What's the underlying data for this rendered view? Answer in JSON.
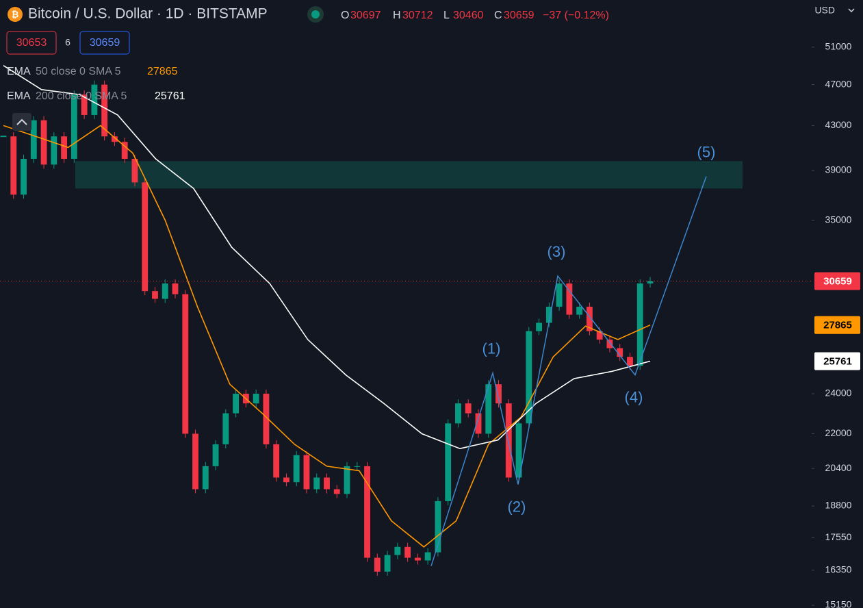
{
  "header": {
    "title": "Bitcoin / U.S. Dollar · 1D · BITSTAMP",
    "ohlc": [
      {
        "label": "O",
        "value": 30697
      },
      {
        "label": "H",
        "value": 30712
      },
      {
        "label": "L",
        "value": 30460
      },
      {
        "label": "C",
        "value": 30659
      }
    ],
    "change": "−37 (−0.12%)"
  },
  "order": {
    "sell": 30653,
    "spread": 6,
    "buy": 30659
  },
  "currency": "USD",
  "chart_data": {
    "type": "candlestick",
    "log": true,
    "up_color": "#089981",
    "down_color": "#f23645",
    "values": [
      42000,
      37000,
      40000,
      43500,
      39500,
      42000,
      40000,
      46000,
      44000,
      47000,
      42000,
      41500,
      40000,
      38000,
      30000,
      29500,
      30500,
      29800,
      22000,
      19500,
      20500,
      21500,
      23000,
      24000,
      23500,
      24000,
      21500,
      20000,
      19800,
      21000,
      19500,
      20000,
      19500,
      19300,
      20500,
      20500,
      16800,
      16300,
      16900,
      17200,
      16800,
      16700,
      17000,
      19000,
      22500,
      23500,
      23000,
      22000,
      24500,
      23500,
      20000,
      22500,
      27500,
      28000,
      29000,
      30500,
      28500,
      29000,
      27500,
      27000,
      26500,
      26000,
      25500,
      30500,
      30659
    ],
    "last": 30659,
    "series": [
      {
        "name": "EMA",
        "params": "50 close 0 SMA 5",
        "value": 27865,
        "color": "#ff9800",
        "values": [
          43000,
          42000,
          41000,
          43000,
          40500,
          35000,
          29000,
          24500,
          23000,
          21500,
          20500,
          20300,
          18200,
          17200,
          18200,
          21500,
          22800,
          26000,
          27800,
          27000,
          27865
        ]
      },
      {
        "name": "EMA",
        "params": "200 close 0 SMA 5",
        "value": 25761,
        "color": "#ffffff",
        "values": [
          49000,
          46500,
          46000,
          44000,
          40000,
          37500,
          33000,
          30500,
          27000,
          25000,
          23500,
          22000,
          21300,
          21700,
          23500,
          24800,
          25200,
          25761
        ]
      }
    ],
    "zone": [
      37500,
      39800
    ],
    "wave_points": [
      16500,
      25100,
      19700,
      31000,
      25000,
      38500
    ],
    "wave_labels": [
      "(1)",
      "(2)",
      "(3)",
      "(4)",
      "(5)"
    ],
    "ylim": [
      15060,
      56500
    ],
    "yticks": [
      51000,
      47000,
      43000,
      39000,
      35000,
      24000,
      22000,
      20400,
      18800,
      17550,
      16350,
      15150
    ]
  }
}
